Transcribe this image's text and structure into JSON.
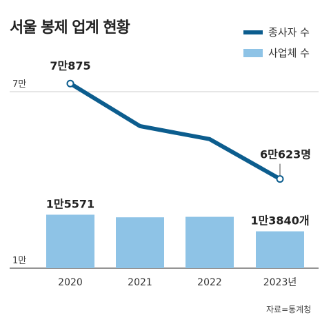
{
  "title": "서울 봉제 업계 현황",
  "source": "자료=통계청",
  "colors": {
    "line": "#0c5d8e",
    "bar": "#8ec3e6",
    "axis": "#555555",
    "grid": "#cccccc"
  },
  "chart_data": {
    "type": "bar",
    "categories": [
      "2020",
      "2021",
      "2022",
      "2023년"
    ],
    "legend_position": "top-right",
    "series": [
      {
        "name": "종사자 수",
        "kind": "line",
        "axis": "top",
        "values": [
          70875,
          66300,
          64900,
          60623
        ],
        "labels": [
          "7만875",
          "",
          "",
          "6만623명"
        ]
      },
      {
        "name": "사업체 수",
        "kind": "bar",
        "axis": "bottom",
        "values": [
          15571,
          15300,
          15350,
          13840
        ],
        "labels": [
          "1만5571",
          "",
          "",
          "1만3840개"
        ]
      }
    ],
    "y_ticks": {
      "top": "7만",
      "bottom": "1만"
    }
  }
}
